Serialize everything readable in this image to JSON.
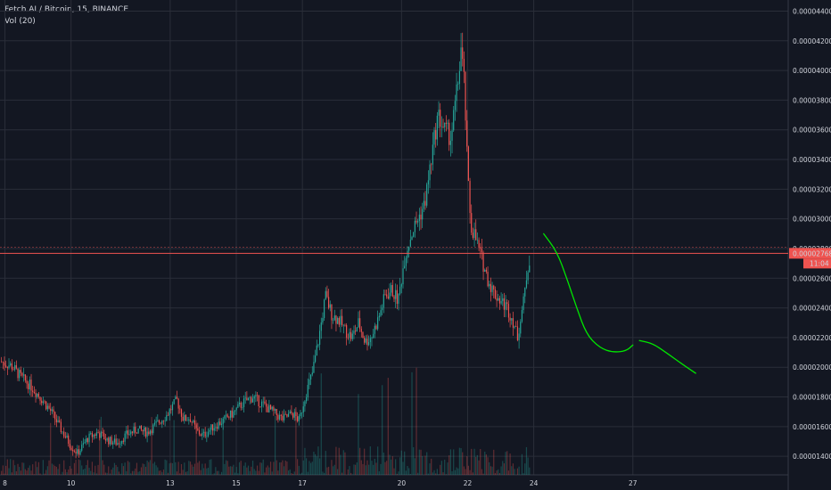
{
  "header": {
    "title": "Fetch.AI / Bitcoin, 15, BINANCE",
    "indicator": "Vol (20)"
  },
  "price_tag": {
    "value": "0.00002768",
    "countdown": "11:04"
  },
  "colors": {
    "background": "#131722",
    "grid": "#2a2e39",
    "up": "#26a69a",
    "down": "#ef5350",
    "price_line": "#ef5350",
    "annotation": "#00e600"
  },
  "chart_data": {
    "type": "candlestick",
    "y_ticks": [
      "0.00001400",
      "0.00001600",
      "0.00001800",
      "0.00002000",
      "0.00002200",
      "0.00002400",
      "0.00002600",
      "0.00002800",
      "0.00003000",
      "0.00003200",
      "0.00003400",
      "0.00003600",
      "0.00003800",
      "0.00004000",
      "0.00004200",
      "0.00004400"
    ],
    "ylim": [
      1.275e-05,
      4.475e-05
    ],
    "x_ticks": [
      "8",
      "10",
      "13",
      "15",
      "17",
      "20",
      "22",
      "24",
      "27"
    ],
    "x_tick_days": [
      8,
      10,
      13,
      15,
      17,
      20,
      22,
      24,
      27
    ],
    "xlim": [
      7.85,
      31.7
    ],
    "current_price": 2.768e-05,
    "price_path": [
      [
        7.85,
        2.04e-05
      ],
      [
        8.2,
        2.01e-05
      ],
      [
        8.5,
        1.93e-05
      ],
      [
        8.8,
        1.87e-05
      ],
      [
        9.1,
        1.79e-05
      ],
      [
        9.4,
        1.7e-05
      ],
      [
        9.7,
        1.58e-05
      ],
      [
        10.0,
        1.47e-05
      ],
      [
        10.2,
        1.42e-05
      ],
      [
        10.5,
        1.52e-05
      ],
      [
        10.8,
        1.56e-05
      ],
      [
        11.1,
        1.51e-05
      ],
      [
        11.4,
        1.49e-05
      ],
      [
        11.7,
        1.55e-05
      ],
      [
        12.0,
        1.58e-05
      ],
      [
        12.3,
        1.56e-05
      ],
      [
        12.6,
        1.62e-05
      ],
      [
        12.9,
        1.68e-05
      ],
      [
        13.2,
        1.78e-05
      ],
      [
        13.4,
        1.65e-05
      ],
      [
        13.6,
        1.66e-05
      ],
      [
        13.8,
        1.57e-05
      ],
      [
        14.0,
        1.54e-05
      ],
      [
        14.3,
        1.6e-05
      ],
      [
        14.6,
        1.64e-05
      ],
      [
        14.9,
        1.69e-05
      ],
      [
        15.2,
        1.76e-05
      ],
      [
        15.5,
        1.8e-05
      ],
      [
        15.8,
        1.75e-05
      ],
      [
        16.1,
        1.7e-05
      ],
      [
        16.4,
        1.65e-05
      ],
      [
        16.7,
        1.69e-05
      ],
      [
        16.9,
        1.64e-05
      ],
      [
        17.1,
        1.82e-05
      ],
      [
        17.3,
        1.96e-05
      ],
      [
        17.5,
        2.2e-05
      ],
      [
        17.7,
        2.48e-05
      ],
      [
        17.9,
        2.35e-05
      ],
      [
        18.1,
        2.32e-05
      ],
      [
        18.3,
        2.25e-05
      ],
      [
        18.5,
        2.2e-05
      ],
      [
        18.7,
        2.3e-05
      ],
      [
        18.9,
        2.17e-05
      ],
      [
        19.1,
        2.21e-05
      ],
      [
        19.3,
        2.33e-05
      ],
      [
        19.5,
        2.48e-05
      ],
      [
        19.7,
        2.52e-05
      ],
      [
        19.9,
        2.45e-05
      ],
      [
        20.1,
        2.75e-05
      ],
      [
        20.3,
        2.9e-05
      ],
      [
        20.5,
        3e-05
      ],
      [
        20.7,
        3.1e-05
      ],
      [
        20.9,
        3.4e-05
      ],
      [
        21.1,
        3.7e-05
      ],
      [
        21.3,
        3.6e-05
      ],
      [
        21.5,
        3.55e-05
      ],
      [
        21.7,
        3.9e-05
      ],
      [
        21.8,
        4.15e-05
      ],
      [
        21.9,
        3.9e-05
      ],
      [
        22.0,
        3.3e-05
      ],
      [
        22.1,
        2.95e-05
      ],
      [
        22.2,
        2.9e-05
      ],
      [
        22.4,
        2.75e-05
      ],
      [
        22.6,
        2.6e-05
      ],
      [
        22.8,
        2.5e-05
      ],
      [
        23.0,
        2.45e-05
      ],
      [
        23.2,
        2.4e-05
      ],
      [
        23.4,
        2.3e-05
      ],
      [
        23.5,
        2.2e-05
      ],
      [
        23.7,
        2.45e-05
      ],
      [
        23.8,
        2.65e-05
      ],
      [
        23.9,
        2.768e-05
      ]
    ],
    "vol_range": [
      0,
      1
    ],
    "annotation": {
      "type": "line",
      "color": "#00e600",
      "segments": [
        [
          [
            24.3,
            2.9e-05
          ],
          [
            24.7,
            2.78e-05
          ],
          [
            25.0,
            2.6e-05
          ],
          [
            25.3,
            2.4e-05
          ],
          [
            25.6,
            2.22e-05
          ],
          [
            26.0,
            2.13e-05
          ],
          [
            26.4,
            2.1e-05
          ],
          [
            26.8,
            2.11e-05
          ],
          [
            27.0,
            2.15e-05
          ]
        ],
        [
          [
            27.2,
            2.18e-05
          ],
          [
            27.6,
            2.16e-05
          ],
          [
            28.0,
            2.1e-05
          ],
          [
            28.5,
            2.02e-05
          ],
          [
            28.9,
            1.96e-05
          ]
        ]
      ]
    }
  }
}
